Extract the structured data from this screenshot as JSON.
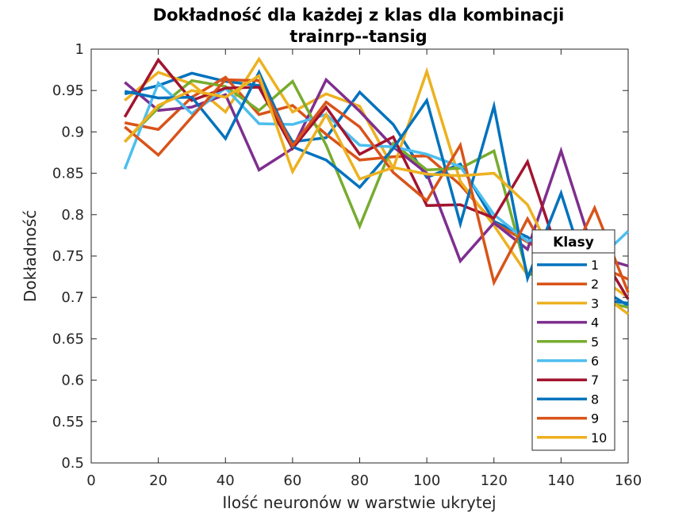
{
  "chart_data": {
    "type": "line",
    "title": [
      "Dokładność dla każdej z klas dla kombinacji",
      "trainrp--tansig"
    ],
    "xlabel": "Ilość neuronów w warstwie ukrytej",
    "ylabel": "Dokładność",
    "xlim": [
      0,
      160
    ],
    "ylim": [
      0.5,
      1
    ],
    "xticks": [
      "0",
      "20",
      "40",
      "60",
      "80",
      "100",
      "120",
      "140",
      "160"
    ],
    "yticks": [
      "0.5",
      "0.55",
      "0.6",
      "0.65",
      "0.7",
      "0.75",
      "0.8",
      "0.85",
      "0.9",
      "0.95",
      "1"
    ],
    "grid": false,
    "legend": {
      "title": "Klasy",
      "placement": "right"
    },
    "x": [
      10,
      20,
      30,
      40,
      50,
      60,
      70,
      80,
      90,
      100,
      110,
      120,
      130,
      140,
      150,
      160
    ],
    "series": [
      {
        "name": "1",
        "color": "#0072BD",
        "values": [
          0.946,
          0.956,
          0.971,
          0.961,
          0.956,
          0.888,
          0.893,
          0.948,
          0.909,
          0.845,
          0.861,
          0.792,
          0.773,
          0.742,
          0.715,
          0.69
        ]
      },
      {
        "name": "2",
        "color": "#D95319",
        "values": [
          0.911,
          0.903,
          0.942,
          0.966,
          0.921,
          0.932,
          0.897,
          0.866,
          0.87,
          0.871,
          0.836,
          0.79,
          0.767,
          0.744,
          0.74,
          0.722
        ]
      },
      {
        "name": "3",
        "color": "#EDB120",
        "values": [
          0.938,
          0.972,
          0.958,
          0.924,
          0.988,
          0.924,
          0.946,
          0.931,
          0.856,
          0.973,
          0.84,
          0.787,
          0.727,
          0.742,
          0.728,
          0.7
        ]
      },
      {
        "name": "4",
        "color": "#7E2F8E",
        "values": [
          0.96,
          0.926,
          0.93,
          0.945,
          0.854,
          0.88,
          0.963,
          0.925,
          0.882,
          0.85,
          0.744,
          0.79,
          0.758,
          0.877,
          0.75,
          0.738
        ]
      },
      {
        "name": "5",
        "color": "#77AC30",
        "values": [
          0.888,
          0.929,
          0.962,
          0.955,
          0.926,
          0.961,
          0.884,
          0.786,
          0.886,
          0.854,
          0.856,
          0.877,
          0.727,
          0.735,
          0.697,
          0.688
        ]
      },
      {
        "name": "6",
        "color": "#4DBEEE",
        "values": [
          0.855,
          0.959,
          0.922,
          0.953,
          0.91,
          0.909,
          0.921,
          0.884,
          0.882,
          0.873,
          0.858,
          0.8,
          0.768,
          0.78,
          0.742,
          0.78
        ]
      },
      {
        "name": "7",
        "color": "#A2142F",
        "values": [
          0.918,
          0.987,
          0.938,
          0.953,
          0.954,
          0.88,
          0.93,
          0.873,
          0.894,
          0.811,
          0.812,
          0.796,
          0.864,
          0.742,
          0.765,
          0.698
        ]
      },
      {
        "name": "8",
        "color": "#0072BD",
        "values": [
          0.949,
          0.941,
          0.942,
          0.892,
          0.972,
          0.882,
          0.866,
          0.833,
          0.88,
          0.938,
          0.789,
          0.931,
          0.723,
          0.826,
          0.698,
          0.693
        ]
      },
      {
        "name": "9",
        "color": "#D95319",
        "values": [
          0.906,
          0.872,
          0.918,
          0.963,
          0.962,
          0.883,
          0.936,
          0.906,
          0.851,
          0.817,
          0.884,
          0.718,
          0.795,
          0.723,
          0.808,
          0.706
        ]
      },
      {
        "name": "10",
        "color": "#EDB120",
        "values": [
          0.888,
          0.932,
          0.95,
          0.942,
          0.968,
          0.852,
          0.921,
          0.843,
          0.857,
          0.849,
          0.847,
          0.85,
          0.812,
          0.73,
          0.71,
          0.68
        ]
      }
    ]
  }
}
